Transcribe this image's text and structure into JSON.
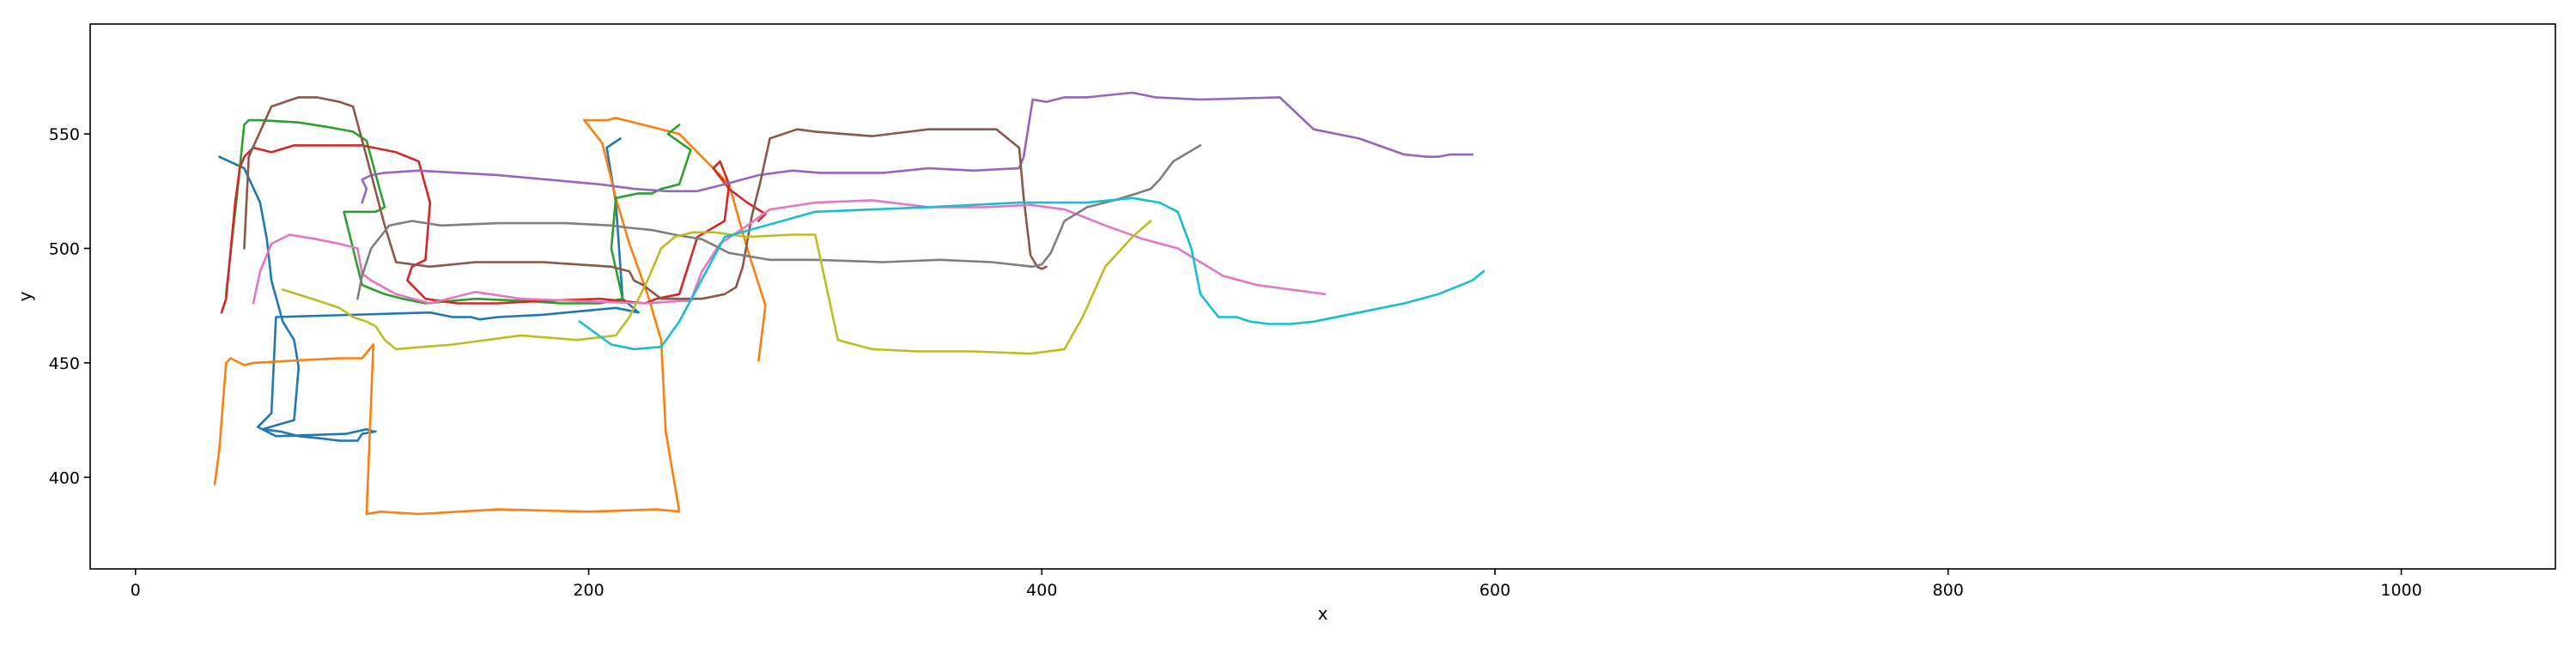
{
  "chart_data": {
    "type": "line",
    "title": "",
    "xlabel": "x",
    "ylabel": "y",
    "xlim": [
      -20,
      1068
    ],
    "ylim": [
      360,
      598
    ],
    "xticks": [
      0,
      200,
      400,
      600,
      800,
      1000
    ],
    "yticks": [
      400,
      450,
      500,
      550
    ],
    "grid": false,
    "legend": "none",
    "series": [
      {
        "color": "#1f77b4",
        "x": [
          37,
          48,
          55,
          58,
          60,
          65,
          70,
          72,
          70,
          56,
          64,
          72,
          82,
          90,
          95,
          98,
          100,
          106,
          105,
          102,
          93,
          62,
          54,
          60,
          62,
          130,
          140,
          148,
          152,
          160,
          180,
          212,
          222,
          215,
          212,
          208,
          214
        ],
        "y": [
          540,
          535,
          520,
          504,
          486,
          468,
          460,
          448,
          425,
          421,
          420,
          418,
          417,
          416,
          416,
          416,
          419,
          420,
          420,
          421,
          419,
          418,
          422,
          428,
          470,
          472,
          470,
          470,
          469,
          470,
          471,
          474,
          472,
          478,
          520,
          544,
          548
        ]
      },
      {
        "color": "#ff7f0e",
        "x": [
          35,
          37,
          40,
          42,
          48,
          52,
          70,
          90,
          100,
          105,
          102,
          108,
          125,
          160,
          200,
          230,
          240,
          234,
          232,
          226,
          218,
          212,
          206,
          198,
          208,
          212,
          220,
          240,
          262,
          270,
          278,
          275
        ],
        "y": [
          397,
          412,
          450,
          452,
          449,
          450,
          451,
          452,
          452,
          458,
          384,
          385,
          384,
          386,
          385,
          386,
          385,
          420,
          460,
          480,
          502,
          522,
          546,
          556,
          556,
          557,
          555,
          550,
          528,
          500,
          475,
          451
        ]
      },
      {
        "color": "#2ca02c",
        "x": [
          40,
          45,
          48,
          50,
          55,
          72,
          85,
          96,
          102,
          108,
          110,
          106,
          100,
          92,
          100,
          105,
          110,
          118,
          128,
          150,
          172,
          188,
          205,
          215,
          210,
          212,
          222,
          228,
          232,
          240,
          245,
          235,
          240
        ],
        "y": [
          480,
          525,
          554,
          556,
          556,
          555,
          553,
          551,
          547,
          525,
          518,
          516,
          516,
          516,
          484,
          482,
          480,
          478,
          476,
          478,
          477,
          476,
          476,
          478,
          500,
          522,
          524,
          524,
          526,
          528,
          543,
          550,
          554
        ]
      },
      {
        "color": "#d62728",
        "x": [
          38,
          40,
          44,
          46,
          48,
          52,
          60,
          70,
          85,
          100,
          115,
          125,
          130,
          128,
          122,
          120,
          128,
          142,
          160,
          178,
          205,
          225,
          230,
          240,
          248,
          260,
          262,
          258,
          255,
          262,
          270,
          278,
          275
        ],
        "y": [
          472,
          478,
          520,
          535,
          540,
          544,
          542,
          545,
          545,
          545,
          542,
          538,
          520,
          495,
          492,
          486,
          478,
          476,
          476,
          477,
          478,
          476,
          478,
          480,
          505,
          512,
          528,
          538,
          535,
          526,
          520,
          515,
          512
        ]
      },
      {
        "color": "#9467bd",
        "x": [
          100,
          102,
          100,
          104,
          110,
          125,
          160,
          205,
          220,
          235,
          248,
          260,
          275,
          290,
          302,
          315,
          330,
          350,
          370,
          390,
          392,
          396,
          402,
          410,
          420,
          440,
          450,
          470,
          505,
          520,
          540,
          560,
          570,
          575,
          580,
          590
        ],
        "y": [
          520,
          526,
          530,
          532,
          533,
          534,
          532,
          528,
          526,
          525,
          525,
          528,
          532,
          534,
          533,
          533,
          533,
          535,
          534,
          535,
          540,
          565,
          564,
          566,
          566,
          568,
          566,
          565,
          566,
          552,
          548,
          541,
          540,
          540,
          541,
          541
        ]
      },
      {
        "color": "#8c564b",
        "x": [
          48,
          50,
          60,
          72,
          80,
          90,
          96,
          102,
          110,
          115,
          130,
          150,
          180,
          210,
          218,
          220,
          224,
          232,
          250,
          260,
          265,
          268,
          272,
          276,
          280,
          292,
          300,
          325,
          350,
          380,
          390,
          392,
          395,
          398,
          400,
          402
        ],
        "y": [
          500,
          540,
          562,
          566,
          566,
          564,
          562,
          540,
          510,
          494,
          492,
          494,
          494,
          492,
          490,
          486,
          484,
          478,
          478,
          480,
          483,
          492,
          514,
          530,
          548,
          552,
          551,
          549,
          552,
          552,
          544,
          522,
          497,
          492,
          491,
          492
        ]
      },
      {
        "color": "#e377c2",
        "x": [
          52,
          55,
          60,
          68,
          80,
          90,
          98,
          100,
          104,
          115,
          130,
          150,
          170,
          195,
          225,
          240,
          245,
          250,
          258,
          270,
          280,
          300,
          325,
          350,
          375,
          395,
          410,
          428,
          445,
          460,
          470,
          480,
          495,
          510,
          525
        ],
        "y": [
          476,
          490,
          502,
          506,
          504,
          502,
          500,
          489,
          486,
          480,
          476,
          481,
          478,
          477,
          476,
          477,
          477,
          490,
          502,
          510,
          517,
          520,
          521,
          518,
          518,
          519,
          517,
          510,
          504,
          500,
          494,
          488,
          484,
          482,
          480
        ]
      },
      {
        "color": "#7f7f7f",
        "x": [
          98,
          100,
          104,
          112,
          122,
          135,
          160,
          190,
          210,
          218,
          228,
          238,
          250,
          262,
          280,
          300,
          330,
          355,
          378,
          396,
          400,
          404,
          410,
          420,
          432,
          442,
          448,
          452,
          458,
          470
        ],
        "y": [
          478,
          488,
          500,
          510,
          512,
          510,
          511,
          511,
          510,
          509,
          508,
          506,
          504,
          498,
          495,
          495,
          494,
          495,
          494,
          492,
          493,
          498,
          512,
          518,
          521,
          524,
          526,
          530,
          538,
          545
        ]
      },
      {
        "color": "#bcbd22",
        "x": [
          65,
          78,
          90,
          96,
          102,
          106,
          110,
          115,
          140,
          170,
          195,
          212,
          218,
          222,
          226,
          232,
          238,
          246,
          256,
          270,
          290,
          300,
          310,
          325,
          345,
          370,
          395,
          410,
          418,
          428,
          440,
          448
        ],
        "y": [
          482,
          478,
          474,
          470,
          468,
          466,
          460,
          456,
          458,
          462,
          460,
          462,
          470,
          478,
          486,
          500,
          505,
          507,
          507,
          505,
          506,
          506,
          460,
          456,
          455,
          455,
          454,
          456,
          470,
          492,
          505,
          512
        ]
      },
      {
        "color": "#17becf",
        "x": [
          196,
          210,
          220,
          232,
          240,
          260,
          300,
          350,
          390,
          420,
          440,
          452,
          460,
          466,
          470,
          478,
          486,
          492,
          500,
          510,
          520,
          540,
          560,
          575,
          590,
          595
        ],
        "y": [
          468,
          458,
          456,
          457,
          468,
          505,
          516,
          518,
          520,
          520,
          522,
          520,
          516,
          500,
          480,
          470,
          470,
          468,
          467,
          467,
          468,
          472,
          476,
          480,
          486,
          490
        ]
      }
    ]
  }
}
